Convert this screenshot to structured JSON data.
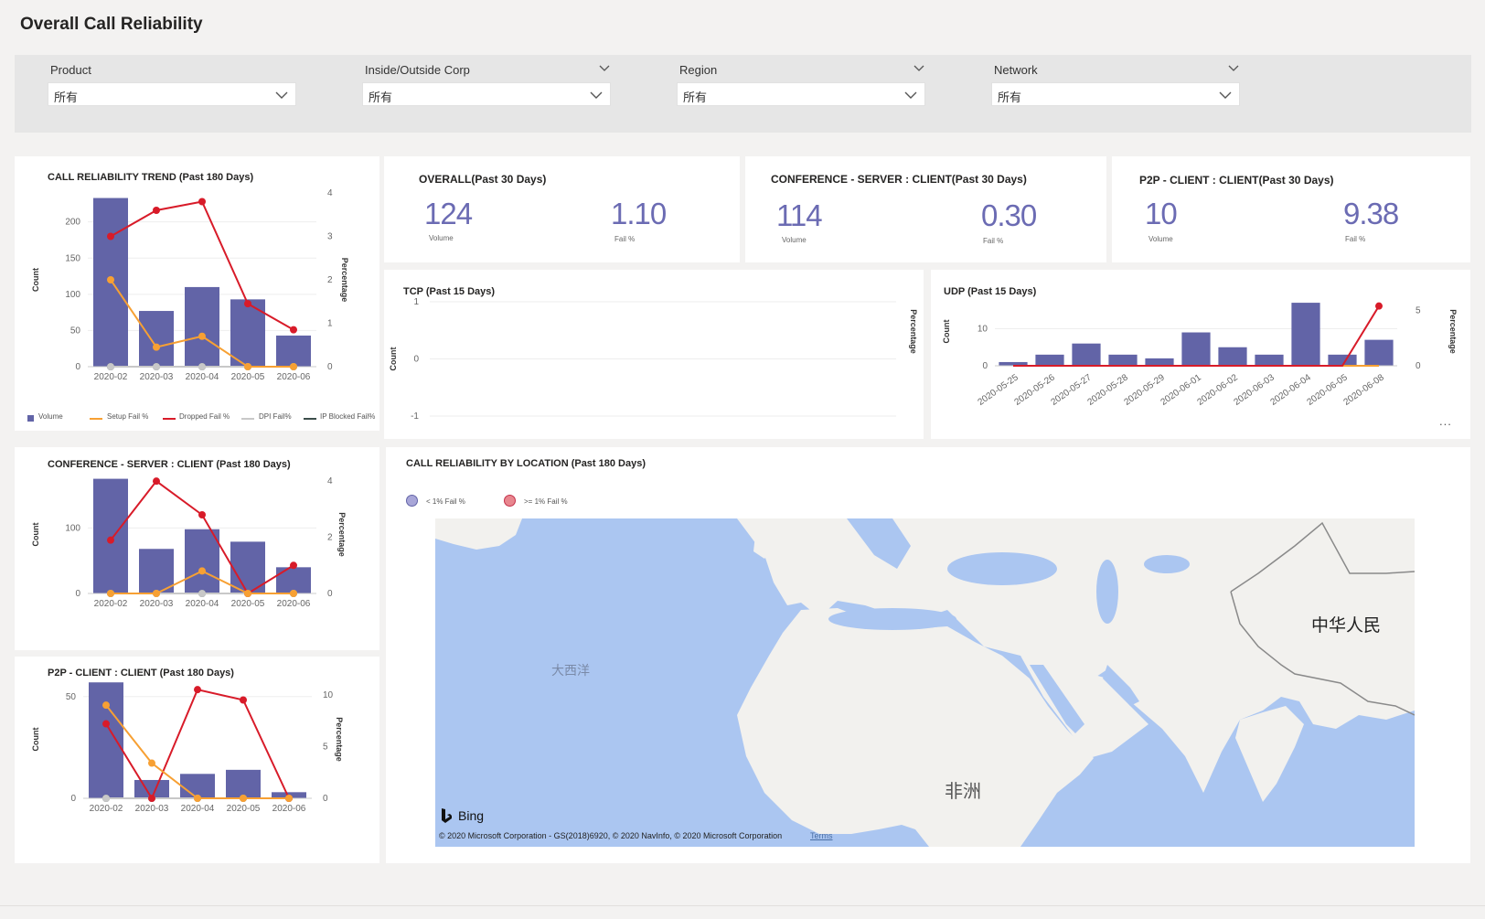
{
  "page": {
    "title": "Overall Call Reliability"
  },
  "filters": [
    {
      "label": "Product",
      "value": "所有"
    },
    {
      "label": "Inside/Outside Corp",
      "value": "所有"
    },
    {
      "label": "Region",
      "value": "所有"
    },
    {
      "label": "Network",
      "value": "所有"
    }
  ],
  "kpis": [
    {
      "title": "OVERALL(Past 30 Days)",
      "volume": "124",
      "volume_label": "Volume",
      "fail": "1.10",
      "fail_label": "Fail %"
    },
    {
      "title": "CONFERENCE - SERVER : CLIENT(Past 30 Days)",
      "volume": "114",
      "volume_label": "Volume",
      "fail": "0.30",
      "fail_label": "Fail %"
    },
    {
      "title": "P2P - CLIENT : CLIENT(Past 30 Days)",
      "volume": "10",
      "volume_label": "Volume",
      "fail": "9.38",
      "fail_label": "Fail %"
    }
  ],
  "legend": {
    "items": [
      {
        "name": "Volume",
        "color": "#6264a7"
      },
      {
        "name": "Setup Fail %",
        "color": "#f7a033"
      },
      {
        "name": "Dropped Fail %",
        "color": "#d81b29"
      },
      {
        "name": "DPI Fail%",
        "color": "#c8c8c8"
      },
      {
        "name": "IP Blocked Fail%",
        "color": "#3b4d4a"
      }
    ]
  },
  "map": {
    "title": "CALL RELIABILITY BY LOCATION (Past 180 Days)",
    "legend": [
      {
        "name": "< 1% Fail %",
        "color": "#a8a6d8"
      },
      {
        "name": ">= 1% Fail %",
        "color": "#e8868e"
      }
    ],
    "labels": {
      "atlantic": "大西洋",
      "africa": "非洲",
      "china": "中华人民"
    },
    "bing": "Bing",
    "copyright": "© 2020 Microsoft Corporation - GS(2018)6920, © 2020 NavInfo, © 2020 Microsoft Corporation",
    "terms": "Terms"
  },
  "more_options": "...",
  "chart_data": [
    {
      "id": "trend",
      "type": "bar",
      "title": "CALL RELIABILITY TREND (Past 180 Days)",
      "categories": [
        "2020-02",
        "2020-03",
        "2020-04",
        "2020-05",
        "2020-06"
      ],
      "ylabel": "Count",
      "y2label": "Percentage",
      "ylim": [
        0,
        240
      ],
      "yticks": [
        0,
        50,
        100,
        150,
        200
      ],
      "y2lim": [
        0,
        4
      ],
      "y2ticks": [
        0,
        1,
        2,
        3,
        4
      ],
      "series": [
        {
          "name": "Volume",
          "kind": "bar",
          "axis": "y",
          "color": "#6264a7",
          "values": [
            233,
            77,
            110,
            93,
            43
          ]
        },
        {
          "name": "Setup Fail %",
          "kind": "line",
          "axis": "y2",
          "color": "#f7a033",
          "values": [
            2.0,
            0.45,
            0.7,
            0,
            0
          ]
        },
        {
          "name": "Dropped Fail %",
          "kind": "line",
          "axis": "y2",
          "color": "#d81b29",
          "values": [
            3.0,
            3.6,
            3.8,
            1.45,
            0.85
          ]
        },
        {
          "name": "DPI Fail%",
          "kind": "line",
          "axis": "y2",
          "color": "#c8c8c8",
          "values": [
            0,
            0,
            0,
            0,
            0
          ]
        },
        {
          "name": "IP Blocked Fail%",
          "kind": "line",
          "axis": "y2",
          "color": "#3b4d4a",
          "values": [
            0,
            0,
            0,
            0,
            0
          ]
        }
      ]
    },
    {
      "id": "conf",
      "type": "bar",
      "title": "CONFERENCE - SERVER : CLIENT (Past 180 Days)",
      "categories": [
        "2020-02",
        "2020-03",
        "2020-04",
        "2020-05",
        "2020-06"
      ],
      "ylabel": "Count",
      "y2label": "Percentage",
      "ylim": [
        0,
        180
      ],
      "yticks": [
        0,
        100
      ],
      "y2lim": [
        0,
        4.2
      ],
      "y2ticks": [
        0,
        2,
        4
      ],
      "series": [
        {
          "name": "Volume",
          "kind": "bar",
          "axis": "y",
          "color": "#6264a7",
          "values": [
            175,
            68,
            98,
            79,
            40
          ]
        },
        {
          "name": "Setup Fail %",
          "kind": "line",
          "axis": "y2",
          "color": "#f7a033",
          "values": [
            0,
            0,
            0.8,
            0,
            0
          ]
        },
        {
          "name": "Dropped Fail %",
          "kind": "line",
          "axis": "y2",
          "color": "#d81b29",
          "values": [
            1.9,
            4.0,
            2.8,
            0,
            1.0
          ]
        },
        {
          "name": "DPI Fail%",
          "kind": "line",
          "axis": "y2",
          "color": "#c8c8c8",
          "values": [
            0,
            0,
            0,
            0,
            0
          ]
        },
        {
          "name": "IP Blocked Fail%",
          "kind": "line",
          "axis": "y2",
          "color": "#3b4d4a",
          "values": [
            0,
            0,
            0,
            0,
            0
          ]
        }
      ]
    },
    {
      "id": "p2p",
      "type": "bar",
      "title": "P2P - CLIENT : CLIENT (Past 180 Days)",
      "categories": [
        "2020-02",
        "2020-03",
        "2020-04",
        "2020-05",
        "2020-06"
      ],
      "ylabel": "Count",
      "y2label": "Percentage",
      "ylim": [
        0,
        58
      ],
      "yticks": [
        0,
        50
      ],
      "y2lim": [
        0,
        11.4
      ],
      "y2ticks": [
        0,
        5,
        10
      ],
      "series": [
        {
          "name": "Volume",
          "kind": "bar",
          "axis": "y",
          "color": "#6264a7",
          "values": [
            57,
            9,
            12,
            14,
            3
          ]
        },
        {
          "name": "Setup Fail %",
          "kind": "line",
          "axis": "y2",
          "color": "#f7a033",
          "values": [
            9.0,
            3.4,
            0,
            0,
            0
          ]
        },
        {
          "name": "Dropped Fail %",
          "kind": "line",
          "axis": "y2",
          "color": "#d81b29",
          "values": [
            7.2,
            0,
            10.5,
            9.5,
            0
          ]
        },
        {
          "name": "DPI Fail%",
          "kind": "line",
          "axis": "y2",
          "color": "#c8c8c8",
          "values": [
            0,
            0,
            0,
            0,
            0
          ]
        },
        {
          "name": "IP Blocked Fail%",
          "kind": "line",
          "axis": "y2",
          "color": "#3b4d4a",
          "values": [
            0,
            0,
            0,
            0,
            0
          ]
        }
      ]
    },
    {
      "id": "tcp",
      "type": "line",
      "title": "TCP (Past 15 Days)",
      "ylabel": "Count",
      "y2label": "Percentage",
      "ylim": [
        -1,
        1
      ],
      "yticks": [
        -1,
        0,
        1
      ],
      "series": []
    },
    {
      "id": "udp",
      "type": "bar",
      "title": "UDP (Past 15 Days)",
      "categories": [
        "2020-05-25",
        "2020-05-26",
        "2020-05-27",
        "2020-05-28",
        "2020-05-29",
        "2020-06-01",
        "2020-06-02",
        "2020-06-03",
        "2020-06-04",
        "2020-06-05",
        "2020-06-08"
      ],
      "ylabel": "Count",
      "y2label": "Percentage",
      "ylim": [
        0,
        18.5
      ],
      "yticks": [
        0,
        10
      ],
      "y2lim": [
        0,
        6.2
      ],
      "y2ticks": [
        0,
        5
      ],
      "series": [
        {
          "name": "Volume",
          "kind": "bar",
          "axis": "y",
          "color": "#6264a7",
          "values": [
            1,
            3,
            6,
            3,
            2,
            9,
            5,
            3,
            17,
            3,
            7
          ]
        },
        {
          "name": "Dropped Fail %",
          "kind": "line",
          "axis": "y2",
          "color": "#d81b29",
          "values": [
            0,
            0,
            0,
            0,
            0,
            0,
            0,
            0,
            0,
            0,
            5.4
          ]
        },
        {
          "name": "Setup Fail %",
          "kind": "line",
          "axis": "y2",
          "color": "#f7a033",
          "values": [
            0,
            0,
            0,
            0,
            0,
            0,
            0,
            0,
            0,
            0,
            0
          ]
        }
      ]
    }
  ]
}
